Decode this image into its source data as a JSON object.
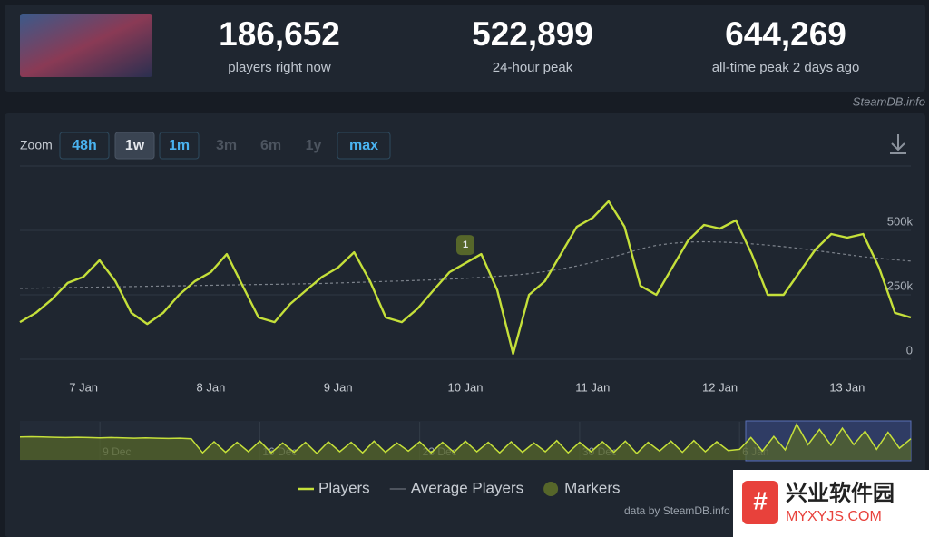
{
  "stats": [
    {
      "value": "186,652",
      "label": "players right now"
    },
    {
      "value": "522,899",
      "label": "24-hour peak"
    },
    {
      "value": "644,269",
      "label": "all-time peak 2 days ago"
    }
  ],
  "source": "SteamDB.info",
  "zoom": {
    "label": "Zoom",
    "options": [
      {
        "label": "48h",
        "state": "enabled"
      },
      {
        "label": "1w",
        "state": "selected"
      },
      {
        "label": "1m",
        "state": "enabled"
      },
      {
        "label": "3m",
        "state": "disabled"
      },
      {
        "label": "6m",
        "state": "disabled"
      },
      {
        "label": "1y",
        "state": "disabled"
      },
      {
        "label": "max",
        "state": "outlined"
      }
    ]
  },
  "chart_data": {
    "type": "line",
    "categories": [
      null,
      null,
      null,
      null,
      "7 Jan",
      null,
      null,
      null,
      null,
      null,
      null,
      null,
      "8 Jan",
      null,
      null,
      null,
      null,
      null,
      null,
      null,
      "9 Jan",
      null,
      null,
      null,
      null,
      null,
      null,
      null,
      "10 Jan",
      null,
      null,
      null,
      null,
      null,
      null,
      null,
      "11 Jan",
      null,
      null,
      null,
      null,
      null,
      null,
      null,
      "12 Jan",
      null,
      null,
      null,
      null,
      null,
      null,
      null,
      "13 Jan",
      null,
      null,
      null,
      null
    ],
    "series": [
      {
        "name": "Players",
        "color": "#c5e03a",
        "values": [
          144000,
          180000,
          232000,
          296000,
          320000,
          384000,
          303000,
          180000,
          137000,
          180000,
          250000,
          303000,
          338000,
          408000,
          285000,
          162000,
          144000,
          215000,
          268000,
          320000,
          356000,
          415000,
          303000,
          162000,
          144000,
          197000,
          268000,
          338000,
          373000,
          408000,
          268000,
          21000,
          250000,
          303000,
          408000,
          514000,
          549000,
          613000,
          514000,
          285000,
          250000,
          356000,
          461000,
          521000,
          507000,
          539000,
          408000,
          250000,
          250000,
          338000,
          426000,
          486000,
          472000,
          486000,
          356000,
          180000,
          162000
        ]
      },
      {
        "name": "Average Players",
        "color": "#7d838c",
        "dashed": true,
        "values": [
          275000,
          276000,
          277000,
          278000,
          279000,
          280000,
          281000,
          282000,
          283000,
          284000,
          285000,
          286000,
          287000,
          288000,
          289000,
          290000,
          291000,
          292000,
          293000,
          294000,
          296000,
          298000,
          300000,
          302000,
          304000,
          306000,
          308000,
          311000,
          314000,
          318000,
          322000,
          326000,
          332000,
          340000,
          350000,
          362000,
          376000,
          392000,
          410000,
          428000,
          442000,
          450000,
          455000,
          456000,
          455000,
          452000,
          448000,
          443000,
          437000,
          430000,
          422000,
          414000,
          406000,
          398000,
          392000,
          386000,
          381000
        ]
      }
    ],
    "markers": {
      "name": "Markers",
      "color": "#56662a",
      "items": [
        {
          "label": "1",
          "at": "10 Jan"
        }
      ]
    },
    "ylim": [
      0,
      750000
    ],
    "yticks": [
      0,
      {
        "value": 250000,
        "label": "250k"
      },
      {
        "value": 500000,
        "label": "500k"
      }
    ],
    "grid": true,
    "legend": "bottom",
    "navigator": {
      "categories": [
        null,
        null,
        null,
        null,
        null,
        null,
        null,
        "9 Dec",
        null,
        null,
        null,
        null,
        null,
        null,
        null,
        null,
        null,
        null,
        null,
        null,
        null,
        "16 Dec",
        null,
        null,
        null,
        null,
        null,
        null,
        null,
        null,
        null,
        null,
        null,
        null,
        null,
        "23 Dec",
        null,
        null,
        null,
        null,
        null,
        null,
        null,
        null,
        null,
        null,
        null,
        null,
        null,
        "30 Dec",
        null,
        null,
        null,
        null,
        null,
        null,
        null,
        null,
        null,
        null,
        null,
        null,
        null,
        "6 Jan",
        null,
        null,
        null,
        null,
        null,
        null,
        null,
        null,
        null,
        null,
        null,
        null,
        null,
        null,
        null
      ],
      "ylim": [
        0,
        650000
      ],
      "values": [
        390000,
        395000,
        390000,
        385000,
        380000,
        385000,
        380000,
        375000,
        380000,
        375000,
        370000,
        375000,
        370000,
        365000,
        370000,
        360000,
        120000,
        310000,
        130000,
        300000,
        140000,
        320000,
        120000,
        290000,
        130000,
        300000,
        110000,
        310000,
        140000,
        300000,
        120000,
        320000,
        130000,
        290000,
        150000,
        310000,
        120000,
        300000,
        130000,
        320000,
        140000,
        300000,
        120000,
        310000,
        130000,
        290000,
        140000,
        330000,
        120000,
        300000,
        140000,
        310000,
        130000,
        320000,
        110000,
        300000,
        150000,
        320000,
        130000,
        330000,
        140000,
        310000,
        160000,
        180000,
        380000,
        150000,
        400000,
        170000,
        610000,
        260000,
        520000,
        250000,
        540000,
        260000,
        490000,
        180000,
        470000,
        200000,
        360000
      ]
    },
    "credit": "data by SteamDB.info"
  },
  "watermark": {
    "title": "兴业软件园",
    "url": "MYXYJS.COM"
  }
}
